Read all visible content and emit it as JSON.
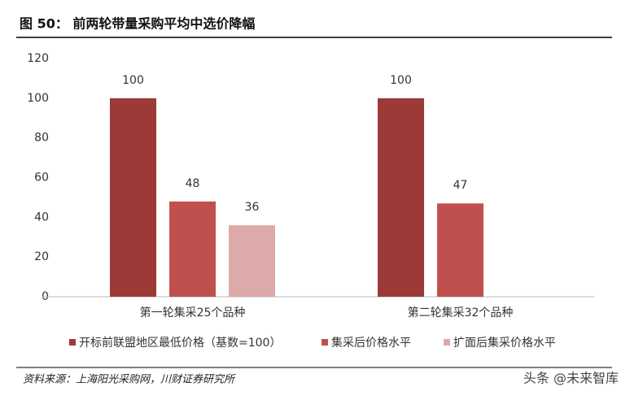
{
  "header": {
    "title": "图 50： 前两轮带量采购平均中选价降幅"
  },
  "chart_data": {
    "type": "bar",
    "categories": [
      "第一轮集采25个品种",
      "第二轮集采32个品种"
    ],
    "series": [
      {
        "name": "开标前联盟地区最低价格（基数=100）",
        "color": "#9b3a36",
        "values": [
          100,
          100
        ]
      },
      {
        "name": "集采后价格水平",
        "color": "#c0504d",
        "values": [
          48,
          47
        ]
      },
      {
        "name": "扩面后集采价格水平",
        "color": "#dcaaa9",
        "values": [
          36,
          null
        ]
      }
    ],
    "ylim": [
      0,
      120
    ],
    "yticks": [
      0,
      20,
      40,
      60,
      80,
      100,
      120
    ],
    "grid": false,
    "legend": "bottom"
  },
  "footer": {
    "source": "资料来源：上海阳光采购网，川财证券研究所",
    "watermark": "头条 @未来智库"
  }
}
